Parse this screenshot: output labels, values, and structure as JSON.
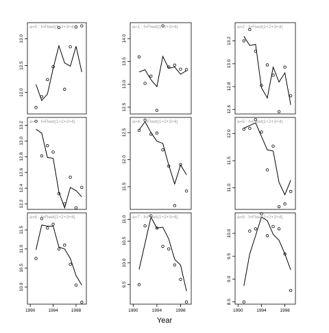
{
  "figure": {
    "xlabel": "Year",
    "x_ticks": [
      1990,
      1994,
      1998
    ],
    "xlim": [
      1989.5,
      1999.8
    ]
  },
  "chart_data": [
    {
      "type": "scatter+line",
      "label": "a=0 : f=Fleet(1+2+3+4)",
      "ylim": [
        11.6,
        13.3
      ],
      "y_ticks": [
        12.0,
        12.5,
        13.0
      ],
      "y_tick_labels": [
        "12.0",
        "12.5",
        "13.0"
      ],
      "x": [
        1991,
        1992,
        1993,
        1994,
        1995,
        1996,
        1997,
        1998,
        1999
      ],
      "observed": [
        11.72,
        11.92,
        12.24,
        12.48,
        13.21,
        12.06,
        12.85,
        13.22,
        13.24
      ],
      "fitted": [
        12.15,
        11.85,
        11.97,
        12.45,
        12.87,
        12.55,
        12.49,
        12.86,
        12.38
      ]
    },
    {
      "type": "scatter+line",
      "label": "a=3 : f=Fleet(1+2+3+4)",
      "ylim": [
        12.13,
        13.3
      ],
      "y_ticks": [
        12.2,
        12.4,
        12.6,
        12.8,
        13.0,
        13.2
      ],
      "y_tick_labels": [
        "12.2",
        "12.4",
        "12.6",
        "12.8",
        "13.0",
        "13.2"
      ],
      "x": [
        1991,
        1992,
        1993,
        1994,
        1995,
        1996,
        1997,
        1998,
        1999
      ],
      "observed": [
        13.25,
        12.81,
        12.94,
        12.86,
        12.33,
        12.2,
        12.54,
        12.15,
        12.41
      ],
      "fitted": [
        13.15,
        13.1,
        12.79,
        12.78,
        12.35,
        12.15,
        12.41,
        12.37,
        12.29
      ]
    },
    {
      "type": "scatter+line",
      "label": "a=6 : f=Fleet(1+2+3+4)",
      "ylim": [
        9.55,
        11.95
      ],
      "y_ticks": [
        10.0,
        10.5,
        11.0,
        11.5
      ],
      "y_tick_labels": [
        "10.0",
        "10.5",
        "11.0",
        "11.5"
      ],
      "x": [
        1991,
        1992,
        1993,
        1994,
        1995,
        1996,
        1997,
        1998,
        1999
      ],
      "observed": [
        10.75,
        11.8,
        11.55,
        11.65,
        11.0,
        11.1,
        10.6,
        10.05,
        9.6
      ],
      "fitted": [
        10.98,
        11.63,
        11.6,
        11.6,
        11.05,
        11.0,
        10.75,
        10.3,
        10.05
      ]
    },
    {
      "type": "scatter+line",
      "label": "a=1 : f=Fleet(1+2+3+4)",
      "ylim": [
        12.35,
        14.35
      ],
      "y_ticks": [
        12.5,
        13.0,
        13.5,
        14.0
      ],
      "y_tick_labels": [
        "12.5",
        "13.0",
        "13.5",
        "14.0"
      ],
      "x": [
        1991,
        1992,
        1993,
        1994,
        1995,
        1996,
        1997,
        1998,
        1999
      ],
      "observed": [
        13.6,
        13.02,
        13.18,
        12.43,
        14.28,
        13.38,
        13.42,
        13.33,
        13.32
      ],
      "fitted": [
        13.27,
        13.32,
        13.1,
        12.95,
        13.61,
        13.35,
        13.38,
        13.22,
        13.3
      ]
    },
    {
      "type": "scatter+line",
      "label": "a=4 : f=Fleet(1+2+3+4)",
      "ylim": [
        11.08,
        12.78
      ],
      "y_ticks": [
        11.5,
        12.0,
        12.5
      ],
      "y_tick_labels": [
        "11.5",
        "12.0",
        "12.5"
      ],
      "x": [
        1991,
        1992,
        1993,
        1994,
        1995,
        1996,
        1997,
        1998,
        1999
      ],
      "observed": [
        12.54,
        12.73,
        12.47,
        12.49,
        12.18,
        11.88,
        11.15,
        11.91,
        11.42
      ],
      "fitted": [
        12.55,
        12.7,
        12.5,
        12.34,
        12.3,
        11.9,
        11.55,
        11.9,
        11.72
      ]
    },
    {
      "type": "scatter+line",
      "label": "a=7 : f=Fleet(1+2+3+4)",
      "ylim": [
        9.05,
        11.15
      ],
      "y_ticks": [
        9.5,
        10.0,
        10.5,
        11.0
      ],
      "y_tick_labels": [
        "9.5",
        "10.0",
        "10.5",
        "11.0"
      ],
      "x": [
        1991,
        1992,
        1993,
        1994,
        1995,
        1996,
        1997,
        1998,
        1999
      ],
      "observed": [
        9.5,
        10.85,
        11.08,
        10.8,
        10.38,
        10.32,
        9.95,
        9.62,
        9.1
      ],
      "fitted": [
        9.85,
        10.45,
        11.05,
        10.8,
        10.82,
        10.55,
        10.08,
        9.95,
        9.35
      ]
    },
    {
      "type": "scatter+line",
      "label": "a=2 : f=Fleet(1+2+3+4)",
      "ylim": [
        12.56,
        13.36
      ],
      "y_ticks": [
        12.6,
        12.8,
        13.0,
        13.2
      ],
      "y_tick_labels": [
        "12.6",
        "12.8",
        "13.0",
        "13.2"
      ],
      "x": [
        1991,
        1992,
        1993,
        1994,
        1995,
        1996,
        1997,
        1998,
        1999
      ],
      "observed": [
        13.2,
        13.3,
        13.11,
        12.81,
        12.99,
        12.9,
        12.58,
        12.97,
        12.72
      ],
      "fitted": [
        13.24,
        13.16,
        13.17,
        12.79,
        12.7,
        12.97,
        12.84,
        12.92,
        12.64
      ]
    },
    {
      "type": "scatter+line",
      "label": "a=5 : f=Fleet(1+2+3+4)",
      "ylim": [
        10.6,
        12.3
      ],
      "y_ticks": [
        11.0,
        11.5,
        12.0
      ],
      "y_tick_labels": [
        "11.0",
        "11.5",
        "12.0"
      ],
      "x": [
        1991,
        1992,
        1993,
        1994,
        1995,
        1996,
        1997,
        1998,
        1999
      ],
      "observed": [
        12.08,
        12.1,
        12.26,
        12.03,
        11.33,
        11.77,
        10.65,
        10.7,
        10.93
      ],
      "fitted": [
        12.1,
        12.15,
        12.2,
        11.95,
        11.7,
        11.68,
        11.1,
        10.87,
        11.14
      ]
    },
    {
      "type": "scatter+line",
      "label": "a=8 : f=Fleet(1+2+3+4)",
      "ylim": [
        8.45,
        10.45
      ],
      "y_ticks": [
        8.5,
        9.0,
        9.5,
        10.0
      ],
      "y_tick_labels": [
        "8.5",
        "9.0",
        "9.5",
        "10.0"
      ],
      "x": [
        1991,
        1992,
        1993,
        1994,
        1995,
        1996,
        1997,
        1998,
        1999
      ],
      "observed": [
        8.5,
        10.05,
        10.1,
        10.43,
        9.95,
        10.15,
        10.1,
        9.55,
        8.75
      ],
      "fitted": [
        8.85,
        9.55,
        9.95,
        10.36,
        10.28,
        9.98,
        9.85,
        9.55,
        9.2
      ]
    }
  ]
}
